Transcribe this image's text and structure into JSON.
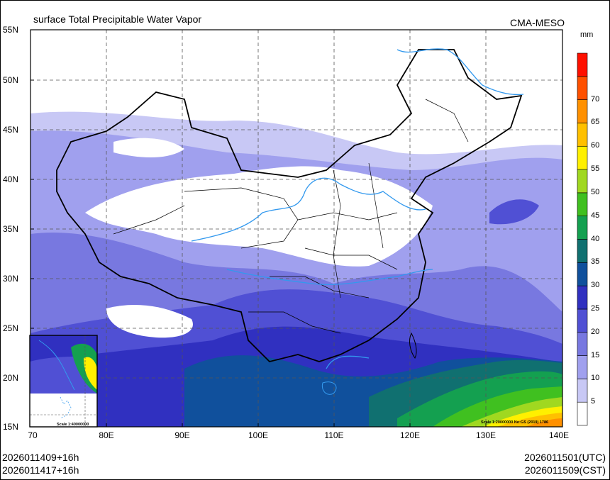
{
  "title": "surface Total Precipitable Water Vapor",
  "source": "CMA-MESO",
  "unit": "mm",
  "y_axis_labels": [
    "55N",
    "50N",
    "45N",
    "40N",
    "35N",
    "30N",
    "25N",
    "20N",
    "15N"
  ],
  "x_axis_labels": [
    "70",
    "80E",
    "90E",
    "100E",
    "110E",
    "120E",
    "130E",
    "140E"
  ],
  "colorbar": {
    "labels": [
      "5",
      "10",
      "15",
      "20",
      "25",
      "30",
      "35",
      "40",
      "45",
      "50",
      "55",
      "60",
      "65",
      "70"
    ],
    "colors": [
      "#ffffff",
      "#c8c8f5",
      "#a0a0ee",
      "#7878e0",
      "#5050d4",
      "#3030c0",
      "#10509c",
      "#107070",
      "#14a050",
      "#40c020",
      "#a0d820",
      "#fff000",
      "#ffc000",
      "#ff9000",
      "#ff5000",
      "#ff1000"
    ]
  },
  "inset_scale": "Scale 1:40000000",
  "main_scale": "Scale 1:20000000 No:GS (2019) 1786",
  "footer": {
    "left_line1": "2026011409+16h",
    "left_line2": "2026011417+16h",
    "right_line1": "2026011501(UTC)",
    "right_line2": "2026011509(CST)"
  }
}
